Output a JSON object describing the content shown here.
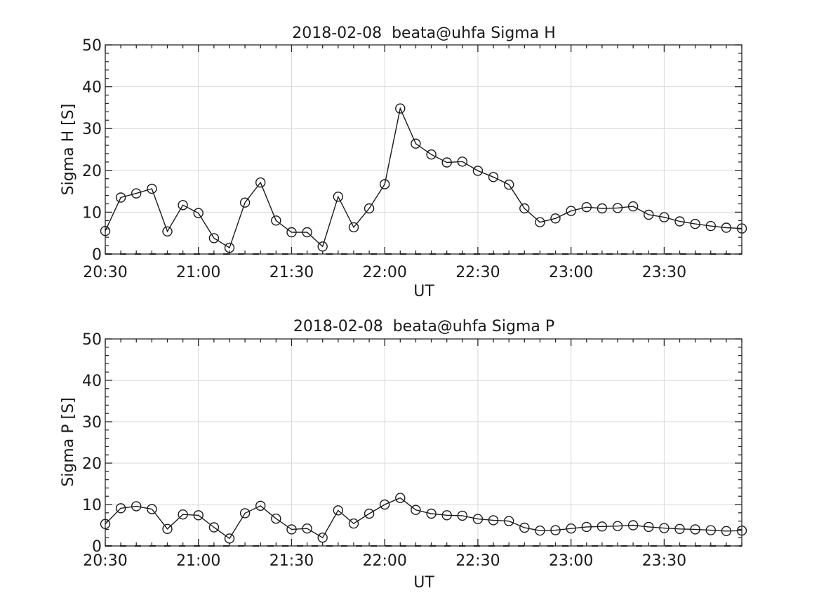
{
  "figure": {
    "background": "#ffffff",
    "line_color": "#1a1a1a",
    "grid_color": "#d9d9d9",
    "axis_color": "#262626"
  },
  "chart_data": [
    {
      "type": "line",
      "title": "2018-02-08  beata@uhfa Sigma H",
      "xlabel": "UT",
      "ylabel": "Sigma H [S]",
      "marker": "open-circle",
      "grid": true,
      "legend": "none",
      "ylim": [
        0,
        50
      ],
      "y_ticks": [
        0,
        10,
        20,
        30,
        40,
        50
      ],
      "y_minor_step": 2,
      "x_minor_step_min": 5,
      "x_tick_labels": [
        "20:30",
        "21:00",
        "21:30",
        "22:00",
        "22:30",
        "23:00",
        "23:30"
      ],
      "x": [
        "20:30",
        "20:35",
        "20:40",
        "20:45",
        "20:50",
        "20:55",
        "21:00",
        "21:05",
        "21:10",
        "21:15",
        "21:20",
        "21:25",
        "21:30",
        "21:35",
        "21:40",
        "21:45",
        "21:50",
        "21:55",
        "22:00",
        "22:05",
        "22:10",
        "22:15",
        "22:20",
        "22:25",
        "22:30",
        "22:35",
        "22:40",
        "22:45",
        "22:50",
        "22:55",
        "23:00",
        "23:05",
        "23:10",
        "23:15",
        "23:20",
        "23:25",
        "23:30",
        "23:35",
        "23:40",
        "23:45",
        "23:50",
        "23:55"
      ],
      "values": [
        5.5,
        13.5,
        14.5,
        15.6,
        5.4,
        11.7,
        9.8,
        3.8,
        1.5,
        12.3,
        17.1,
        8.0,
        5.2,
        5.2,
        1.8,
        13.7,
        6.4,
        10.9,
        16.7,
        34.8,
        26.4,
        23.8,
        21.9,
        22.1,
        19.9,
        18.4,
        16.6,
        10.9,
        7.6,
        8.5,
        10.3,
        11.2,
        10.9,
        11.0,
        11.4,
        9.4,
        8.8,
        7.8,
        7.2,
        6.7,
        6.3,
        6.1
      ]
    },
    {
      "type": "line",
      "title": "2018-02-08  beata@uhfa Sigma P",
      "xlabel": "UT",
      "ylabel": "Sigma P [S]",
      "marker": "open-circle",
      "grid": true,
      "legend": "none",
      "ylim": [
        0,
        50
      ],
      "y_ticks": [
        0,
        10,
        20,
        30,
        40,
        50
      ],
      "y_minor_step": 2,
      "x_minor_step_min": 5,
      "x_tick_labels": [
        "20:30",
        "21:00",
        "21:30",
        "22:00",
        "22:30",
        "23:00",
        "23:30"
      ],
      "x": [
        "20:30",
        "20:35",
        "20:40",
        "20:45",
        "20:50",
        "20:55",
        "21:00",
        "21:05",
        "21:10",
        "21:15",
        "21:20",
        "21:25",
        "21:30",
        "21:35",
        "21:40",
        "21:45",
        "21:50",
        "21:55",
        "22:00",
        "22:05",
        "22:10",
        "22:15",
        "22:20",
        "22:25",
        "22:30",
        "22:35",
        "22:40",
        "22:45",
        "22:50",
        "22:55",
        "23:00",
        "23:05",
        "23:10",
        "23:15",
        "23:20",
        "23:25",
        "23:30",
        "23:35",
        "23:40",
        "23:45",
        "23:50",
        "23:55"
      ],
      "values": [
        5.3,
        9.1,
        9.6,
        8.9,
        4.1,
        7.6,
        7.4,
        4.5,
        1.8,
        7.9,
        9.7,
        6.6,
        4.0,
        4.2,
        2.0,
        8.6,
        5.4,
        7.8,
        10.0,
        11.6,
        8.7,
        7.8,
        7.4,
        7.3,
        6.5,
        6.2,
        6.0,
        4.4,
        3.7,
        3.8,
        4.2,
        4.6,
        4.7,
        4.8,
        5.0,
        4.6,
        4.3,
        4.1,
        4.0,
        3.8,
        3.6,
        3.7
      ]
    }
  ]
}
